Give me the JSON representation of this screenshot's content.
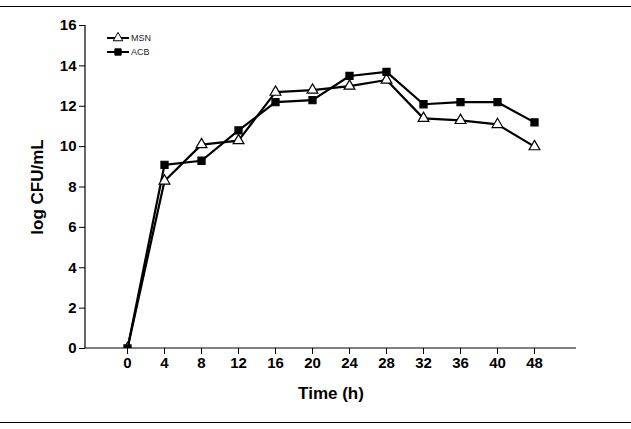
{
  "chart_data": {
    "type": "line",
    "x_label": "Time (h)",
    "y_label": "log CFU/mL",
    "categories": [
      "0",
      "4",
      "8",
      "12",
      "16",
      "20",
      "24",
      "28",
      "32",
      "36",
      "40",
      "48"
    ],
    "series": [
      {
        "name": "MSN",
        "color": "#000000",
        "marker": "open_triangle",
        "values": [
          0,
          8.3,
          10.1,
          10.3,
          12.7,
          12.8,
          13.0,
          13.3,
          11.4,
          11.3,
          11.1,
          10.0
        ]
      },
      {
        "name": "ACB",
        "color": "#000000",
        "marker": "square",
        "values": [
          0,
          9.1,
          9.3,
          10.8,
          12.2,
          12.3,
          13.5,
          13.7,
          12.1,
          12.2,
          12.2,
          11.2
        ]
      }
    ],
    "ylim": [
      0,
      16
    ],
    "yticks": [
      0,
      2,
      4,
      6,
      8,
      10,
      12,
      14,
      16
    ],
    "grid": false,
    "legend": "top-left"
  }
}
